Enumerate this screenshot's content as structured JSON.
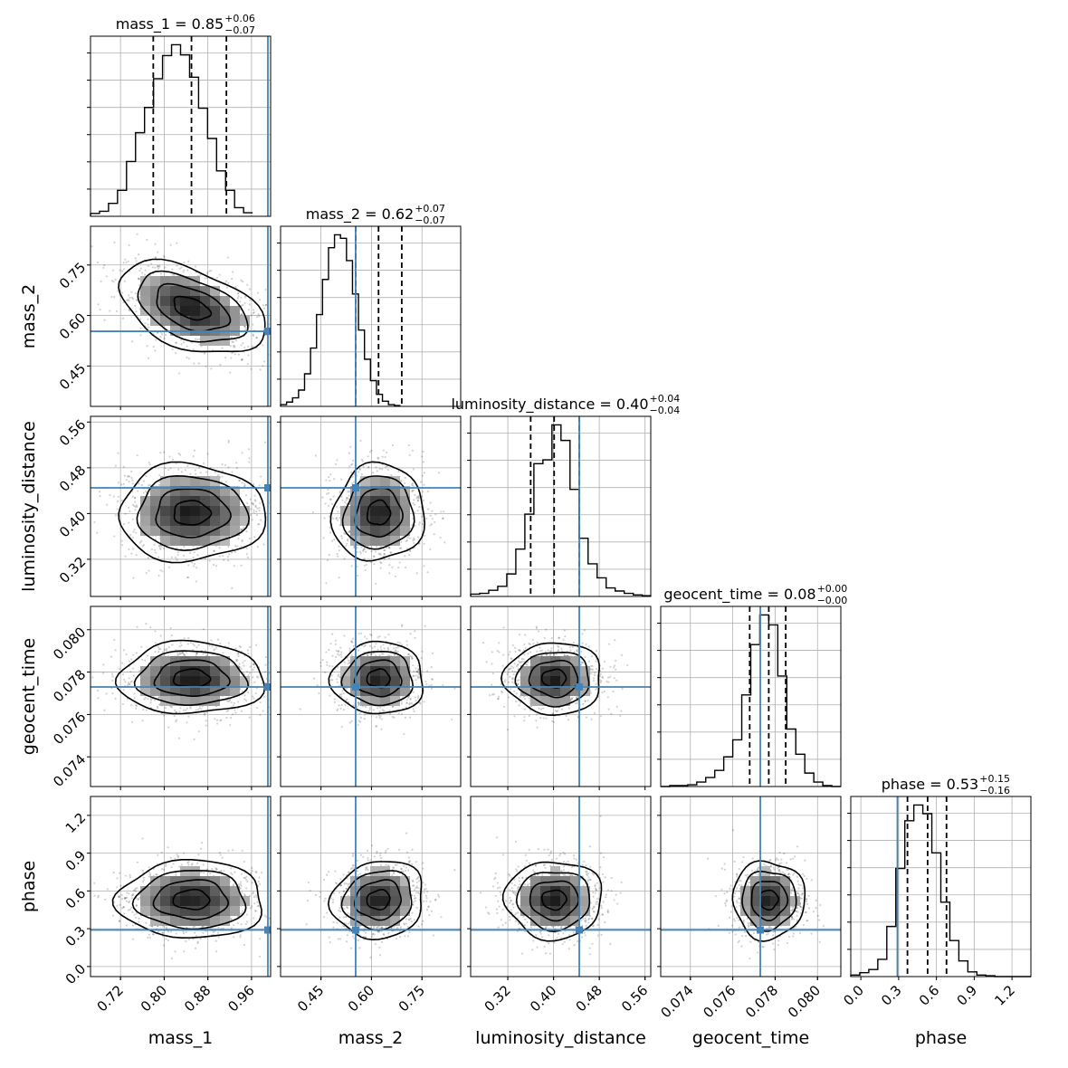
{
  "chart_data": {
    "type": "corner",
    "title": "",
    "parameters": [
      {
        "name": "mass_1",
        "range": [
          0.665,
          0.995
        ],
        "ticks": [
          0.72,
          0.8,
          0.88,
          0.96
        ],
        "tick_labels": [
          "0.72",
          "0.80",
          "0.88",
          "0.96"
        ],
        "title_main": "mass_1 = 0.85",
        "title_plus": "+0.06",
        "title_minus": "−0.07",
        "quantiles": [
          0.78,
          0.85,
          0.914
        ],
        "truth": 0.99,
        "hist_x0": 0.665,
        "hist_dx": 0.0165,
        "hist": [
          4,
          7,
          18,
          36,
          76,
          116,
          151,
          191,
          223,
          238,
          224,
          193,
          150,
          108,
          63,
          36,
          12,
          5
        ]
      },
      {
        "name": "mass_2",
        "range": [
          0.33,
          0.865
        ],
        "ticks": [
          0.45,
          0.6,
          0.75
        ],
        "tick_labels": [
          "0.45",
          "0.60",
          "0.75"
        ],
        "title_main": "mass_2 = 0.62",
        "title_plus": "+0.07",
        "title_minus": "−0.07",
        "quantiles": [
          0.553,
          0.621,
          0.69
        ],
        "truth": 0.553,
        "hist_x0": 0.33,
        "hist_dx": 0.0178,
        "hist": [
          2,
          5,
          10,
          19,
          38,
          68,
          107,
          148,
          185,
          200,
          196,
          170,
          131,
          89,
          55,
          30,
          14,
          6,
          2,
          1
        ]
      },
      {
        "name": "luminosity_distance",
        "range": [
          0.255,
          0.57
        ],
        "ticks": [
          0.32,
          0.4,
          0.48,
          0.56
        ],
        "tick_labels": [
          "0.32",
          "0.40",
          "0.48",
          "0.56"
        ],
        "title_main": "luminosity_distance = 0.40",
        "title_plus": "+0.04",
        "title_minus": "−0.04",
        "quantiles": [
          0.36,
          0.401,
          0.445
        ],
        "truth": 0.445,
        "hist_x0": 0.255,
        "hist_dx": 0.0158,
        "hist": [
          3,
          4,
          8,
          13,
          29,
          61,
          106,
          171,
          176,
          221,
          201,
          138,
          75,
          42,
          24,
          11,
          7,
          4,
          2,
          1
        ]
      },
      {
        "name": "geocent_time",
        "range": [
          0.0726,
          0.0811
        ],
        "ticks": [
          0.074,
          0.076,
          0.078,
          0.08
        ],
        "tick_labels": [
          "0.074",
          "0.076",
          "0.078",
          "0.080"
        ],
        "title_main": "geocent_time = 0.08",
        "title_plus": "+0.00",
        "title_minus": "−0.00",
        "quantiles": [
          0.0768,
          0.0777,
          0.0785
        ],
        "truth": 0.0773,
        "hist_x0": 0.0726,
        "hist_dx": 0.000425,
        "hist": [
          0,
          1,
          1,
          2,
          5,
          10,
          18,
          33,
          52,
          102,
          158,
          191,
          180,
          123,
          64,
          36,
          15,
          5,
          1,
          0
        ]
      },
      {
        "name": "phase",
        "range": [
          -0.08,
          1.35
        ],
        "ticks": [
          0.0,
          0.3,
          0.6,
          0.9,
          1.2
        ],
        "tick_labels": [
          "0.0",
          "0.3",
          "0.6",
          "0.9",
          "1.2"
        ],
        "title_main": "phase = 0.53",
        "title_plus": "+0.15",
        "title_minus": "−0.16",
        "quantiles": [
          0.37,
          0.53,
          0.68
        ],
        "truth": 0.29,
        "hist_x0": -0.08,
        "hist_dx": 0.0715,
        "hist": [
          2,
          5,
          9,
          22,
          64,
          138,
          199,
          219,
          208,
          158,
          95,
          46,
          20,
          6,
          2,
          1,
          0,
          0,
          0,
          0
        ]
      }
    ],
    "correlations": {
      "1-0": -0.45,
      "2-0": 0.0,
      "2-1": 0.05,
      "3-0": 0.0,
      "3-1": 0.0,
      "3-2": 0.0,
      "4-0": 0.0,
      "4-1": 0.1,
      "4-2": 0.0,
      "4-3": 0.0
    },
    "colors": {
      "truth": "#4682b4",
      "hist": "#000000",
      "density_dark": "#1a1a1a",
      "scatter": "#000000",
      "grid": "#b0b0b0"
    },
    "grid": true,
    "contour_levels": [
      "0.5-sigma",
      "1-sigma",
      "1.5-sigma",
      "2-sigma"
    ]
  }
}
